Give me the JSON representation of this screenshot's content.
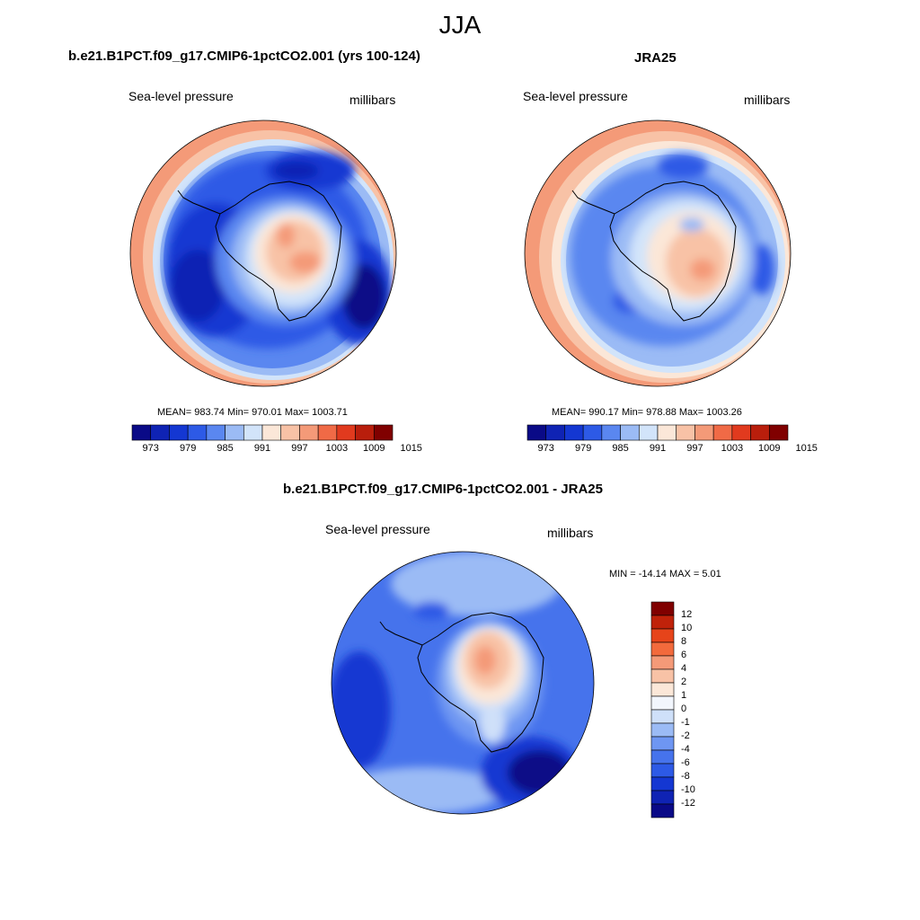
{
  "figure": {
    "title": "JJA"
  },
  "colors": {
    "abs_palette": [
      "#0a0a87",
      "#0f23b4",
      "#1437d2",
      "#2d5ae6",
      "#5a87f0",
      "#9bbbf5",
      "#d2e4fa",
      "#fbe7d8",
      "#f8c2a6",
      "#f49a78",
      "#f06a46",
      "#e13a1e",
      "#b91e0c",
      "#800000"
    ],
    "diff_palette": [
      "#0a0a87",
      "#0f23b4",
      "#1437d2",
      "#2d5ae6",
      "#4673ec",
      "#6e96f2",
      "#9bbbf5",
      "#cfe0f9",
      "#f2f6fd",
      "#fbe7d8",
      "#f8c2a6",
      "#f49a78",
      "#f26a3c",
      "#e6441a",
      "#c0220a",
      "#800000"
    ]
  },
  "panels": {
    "model": {
      "title": "b.e21.B1PCT.f09_g17.CMIP6-1pctCO2.001 (yrs 100-124)",
      "left_label": "Sea-level pressure",
      "right_label": "millibars",
      "stats": "MEAN= 983.74  Min= 970.01  Max= 1003.71",
      "ticks": [
        "973",
        "979",
        "985",
        "991",
        "997",
        "1003",
        "1009",
        "1015"
      ]
    },
    "obs": {
      "title": "JRA25",
      "left_label": "Sea-level pressure",
      "right_label": "millibars",
      "stats": "MEAN= 990.17  Min= 978.88  Max= 1003.26",
      "ticks": [
        "973",
        "979",
        "985",
        "991",
        "997",
        "1003",
        "1009",
        "1015"
      ]
    },
    "diff": {
      "title": "b.e21.B1PCT.f09_g17.CMIP6-1pctCO2.001 - JRA25",
      "left_label": "Sea-level pressure",
      "right_label": "millibars",
      "stats": "MIN = -14.14 MAX =   5.01",
      "ticks": [
        "12",
        "10",
        "8",
        "6",
        "4",
        "2",
        "1",
        "0",
        "-1",
        "-2",
        "-4",
        "-6",
        "-8",
        "-10",
        "-12"
      ]
    }
  }
}
